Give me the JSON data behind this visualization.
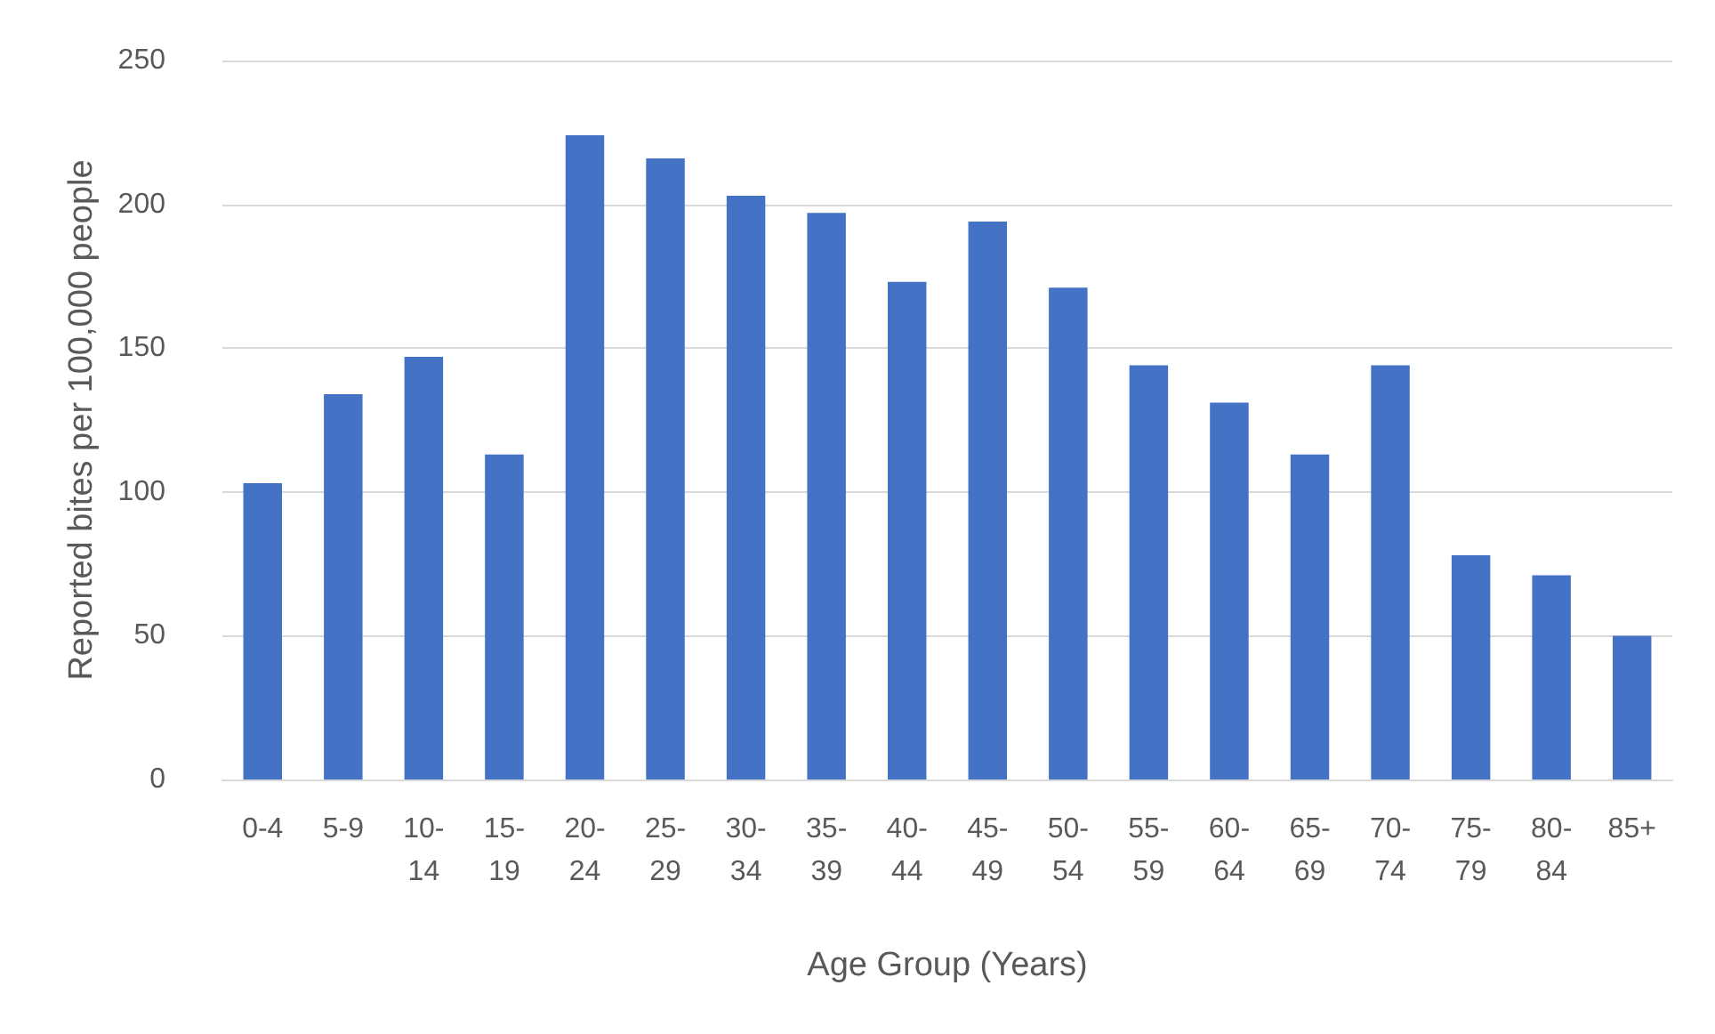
{
  "chart_data": {
    "type": "bar",
    "xlabel": "Age Group (Years)",
    "ylabel": "Reported bites per 100,000 people",
    "categories": [
      "0-4",
      "5-9",
      "10-14",
      "15-19",
      "20-24",
      "25-29",
      "30-34",
      "35-39",
      "40-44",
      "45-49",
      "50-54",
      "55-59",
      "60-64",
      "65-69",
      "70-74",
      "75-79",
      "80-84",
      "85+"
    ],
    "values": [
      103,
      134,
      147,
      113,
      224,
      216,
      203,
      197,
      173,
      194,
      171,
      144,
      131,
      113,
      144,
      78,
      71,
      50
    ],
    "color": "#4472c4",
    "ylim": [
      0,
      250
    ],
    "yticks": [
      0,
      50,
      100,
      150,
      200,
      250
    ],
    "grid": "y"
  }
}
